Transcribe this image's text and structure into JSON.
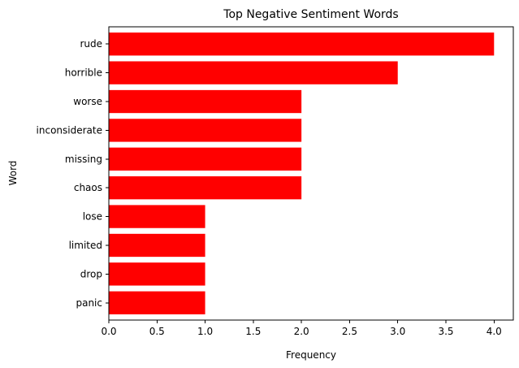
{
  "chart_data": {
    "type": "bar",
    "orientation": "horizontal",
    "title": "Top Negative Sentiment Words",
    "xlabel": "Frequency",
    "ylabel": "Word",
    "categories": [
      "rude",
      "horrible",
      "worse",
      "inconsiderate",
      "missing",
      "chaos",
      "lose",
      "limited",
      "drop",
      "panic"
    ],
    "values": [
      4,
      3,
      2,
      2,
      2,
      2,
      1,
      1,
      1,
      1
    ],
    "xlim": [
      0,
      4.2
    ],
    "xticks": [
      0.0,
      0.5,
      1.0,
      1.5,
      2.0,
      2.5,
      3.0,
      3.5,
      4.0
    ],
    "xtick_labels": [
      "0.0",
      "0.5",
      "1.0",
      "1.5",
      "2.0",
      "2.5",
      "3.0",
      "3.5",
      "4.0"
    ],
    "bar_color": "#ff0000",
    "grid": false,
    "legend": "none"
  }
}
